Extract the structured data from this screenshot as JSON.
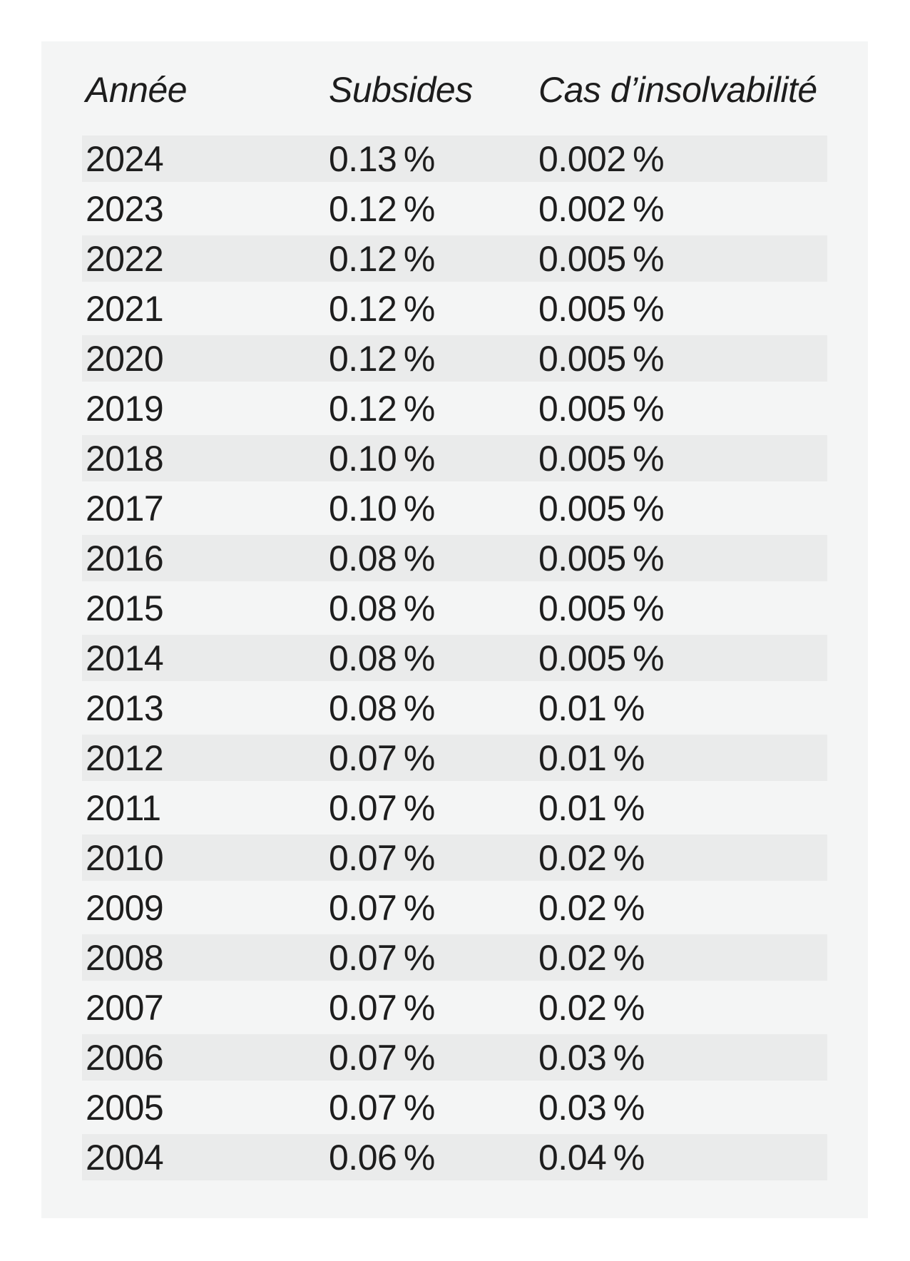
{
  "colors": {
    "page_bg": "#ffffff",
    "panel_bg": "#f4f5f5",
    "stripe_bg": "#eaebeb",
    "text": "#1d1d1d"
  },
  "table": {
    "headers": [
      "Année",
      "Subsides",
      "Cas d’insolvabilité"
    ],
    "rows": [
      {
        "annee": "2024",
        "subsides": "0.13 %",
        "cas": "0.002 %"
      },
      {
        "annee": "2023",
        "subsides": "0.12 %",
        "cas": "0.002 %"
      },
      {
        "annee": "2022",
        "subsides": "0.12 %",
        "cas": "0.005 %"
      },
      {
        "annee": "2021",
        "subsides": "0.12 %",
        "cas": "0.005 %"
      },
      {
        "annee": "2020",
        "subsides": "0.12 %",
        "cas": "0.005 %"
      },
      {
        "annee": "2019",
        "subsides": "0.12 %",
        "cas": "0.005 %"
      },
      {
        "annee": "2018",
        "subsides": "0.10 %",
        "cas": "0.005 %"
      },
      {
        "annee": "2017",
        "subsides": "0.10 %",
        "cas": "0.005 %"
      },
      {
        "annee": "2016",
        "subsides": "0.08 %",
        "cas": "0.005 %"
      },
      {
        "annee": "2015",
        "subsides": "0.08 %",
        "cas": "0.005 %"
      },
      {
        "annee": "2014",
        "subsides": "0.08 %",
        "cas": "0.005 %"
      },
      {
        "annee": "2013",
        "subsides": "0.08 %",
        "cas": "0.01 %"
      },
      {
        "annee": "2012",
        "subsides": "0.07 %",
        "cas": "0.01 %"
      },
      {
        "annee": "2011",
        "subsides": "0.07 %",
        "cas": "0.01 %"
      },
      {
        "annee": "2010",
        "subsides": "0.07 %",
        "cas": "0.02 %"
      },
      {
        "annee": "2009",
        "subsides": "0.07 %",
        "cas": "0.02 %"
      },
      {
        "annee": "2008",
        "subsides": "0.07 %",
        "cas": "0.02 %"
      },
      {
        "annee": "2007",
        "subsides": "0.07 %",
        "cas": "0.02 %"
      },
      {
        "annee": "2006",
        "subsides": "0.07 %",
        "cas": "0.03 %"
      },
      {
        "annee": "2005",
        "subsides": "0.07 %",
        "cas": "0.03 %"
      },
      {
        "annee": "2004",
        "subsides": "0.06 %",
        "cas": "0.04 %"
      }
    ]
  },
  "chart_data": {
    "type": "table",
    "title": "",
    "columns": [
      "Année",
      "Subsides",
      "Cas d’insolvabilité"
    ],
    "rows": [
      [
        "2024",
        "0.13 %",
        "0.002 %"
      ],
      [
        "2023",
        "0.12 %",
        "0.002 %"
      ],
      [
        "2022",
        "0.12 %",
        "0.005 %"
      ],
      [
        "2021",
        "0.12 %",
        "0.005 %"
      ],
      [
        "2020",
        "0.12 %",
        "0.005 %"
      ],
      [
        "2019",
        "0.12 %",
        "0.005 %"
      ],
      [
        "2018",
        "0.10 %",
        "0.005 %"
      ],
      [
        "2017",
        "0.10 %",
        "0.005 %"
      ],
      [
        "2016",
        "0.08 %",
        "0.005 %"
      ],
      [
        "2015",
        "0.08 %",
        "0.005 %"
      ],
      [
        "2014",
        "0.08 %",
        "0.005 %"
      ],
      [
        "2013",
        "0.08 %",
        "0.01 %"
      ],
      [
        "2012",
        "0.07 %",
        "0.01 %"
      ],
      [
        "2011",
        "0.07 %",
        "0.01 %"
      ],
      [
        "2010",
        "0.07 %",
        "0.02 %"
      ],
      [
        "2009",
        "0.07 %",
        "0.02 %"
      ],
      [
        "2008",
        "0.07 %",
        "0.02 %"
      ],
      [
        "2007",
        "0.07 %",
        "0.02 %"
      ],
      [
        "2006",
        "0.07 %",
        "0.03 %"
      ],
      [
        "2005",
        "0.07 %",
        "0.03 %"
      ],
      [
        "2004",
        "0.06 %",
        "0.04 %"
      ]
    ],
    "series": [
      {
        "name": "Subsides (%)",
        "values": [
          0.13,
          0.12,
          0.12,
          0.12,
          0.12,
          0.12,
          0.1,
          0.1,
          0.08,
          0.08,
          0.08,
          0.08,
          0.07,
          0.07,
          0.07,
          0.07,
          0.07,
          0.07,
          0.07,
          0.07,
          0.06
        ]
      },
      {
        "name": "Cas d’insolvabilité (%)",
        "values": [
          0.002,
          0.002,
          0.005,
          0.005,
          0.005,
          0.005,
          0.005,
          0.005,
          0.005,
          0.005,
          0.005,
          0.01,
          0.01,
          0.01,
          0.02,
          0.02,
          0.02,
          0.02,
          0.03,
          0.03,
          0.04
        ]
      }
    ],
    "categories": [
      "2024",
      "2023",
      "2022",
      "2021",
      "2020",
      "2019",
      "2018",
      "2017",
      "2016",
      "2015",
      "2014",
      "2013",
      "2012",
      "2011",
      "2010",
      "2009",
      "2008",
      "2007",
      "2006",
      "2005",
      "2004"
    ],
    "layout": {
      "striped_rows": true,
      "stripe_on": "even_years",
      "grid": false
    }
  }
}
